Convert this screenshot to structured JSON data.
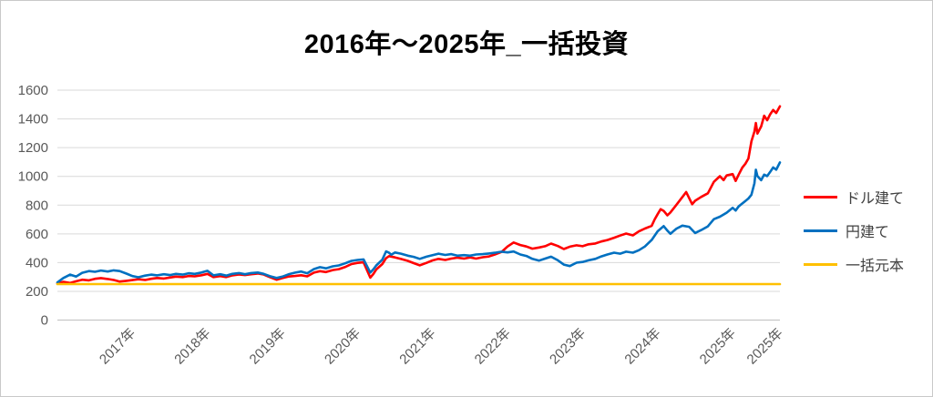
{
  "title": "2016年～2025年_一括投資",
  "chart_data": {
    "type": "line",
    "title": "2016年～2025年_一括投資",
    "xlabel": "",
    "ylabel": "",
    "grid": true,
    "legend_position": "right",
    "y_axis": {
      "min": 0,
      "max": 1600,
      "step": 200,
      "tick_labels": [
        "0",
        "200",
        "400",
        "600",
        "800",
        "1000",
        "1200",
        "1400",
        "1600"
      ]
    },
    "x_axis": {
      "min": 2016.0,
      "max": 2025.63,
      "ticks": [
        {
          "t": 2017.0,
          "label": "2017年"
        },
        {
          "t": 2018.0,
          "label": "2018年"
        },
        {
          "t": 2019.0,
          "label": "2019年"
        },
        {
          "t": 2020.0,
          "label": "2020年"
        },
        {
          "t": 2021.0,
          "label": "2021年"
        },
        {
          "t": 2022.0,
          "label": "2022年"
        },
        {
          "t": 2023.0,
          "label": "2023年"
        },
        {
          "t": 2024.0,
          "label": "2024年"
        },
        {
          "t": 2025.0,
          "label": "2025年"
        },
        {
          "t": 2025.63,
          "label": "2025年"
        }
      ]
    },
    "colors": {
      "gridline": "#d9d9d9",
      "axis_line": "#bfbfbf",
      "tick_text": "#595959",
      "legend_text": "#404040"
    },
    "series": [
      {
        "name": "ドル建て",
        "color": "#FF0000",
        "x": [
          2016.0,
          2016.08,
          2016.17,
          2016.25,
          2016.33,
          2016.42,
          2016.5,
          2016.58,
          2016.67,
          2016.75,
          2016.83,
          2016.92,
          2017.0,
          2017.08,
          2017.17,
          2017.25,
          2017.33,
          2017.42,
          2017.5,
          2017.58,
          2017.67,
          2017.75,
          2017.83,
          2017.92,
          2018.0,
          2018.08,
          2018.17,
          2018.25,
          2018.33,
          2018.42,
          2018.5,
          2018.58,
          2018.67,
          2018.75,
          2018.83,
          2018.92,
          2019.0,
          2019.08,
          2019.17,
          2019.25,
          2019.33,
          2019.42,
          2019.5,
          2019.58,
          2019.67,
          2019.75,
          2019.83,
          2019.92,
          2020.0,
          2020.08,
          2020.17,
          2020.21,
          2020.25,
          2020.33,
          2020.38,
          2020.42,
          2020.5,
          2020.58,
          2020.67,
          2020.75,
          2020.83,
          2020.92,
          2021.0,
          2021.08,
          2021.17,
          2021.25,
          2021.33,
          2021.42,
          2021.5,
          2021.58,
          2021.67,
          2021.75,
          2021.83,
          2021.92,
          2022.0,
          2022.08,
          2022.17,
          2022.25,
          2022.33,
          2022.42,
          2022.5,
          2022.58,
          2022.67,
          2022.75,
          2022.83,
          2022.92,
          2023.0,
          2023.08,
          2023.17,
          2023.25,
          2023.33,
          2023.42,
          2023.5,
          2023.58,
          2023.67,
          2023.75,
          2023.83,
          2023.92,
          2023.96,
          2024.0,
          2024.04,
          2024.08,
          2024.13,
          2024.17,
          2024.25,
          2024.33,
          2024.38,
          2024.46,
          2024.5,
          2024.58,
          2024.67,
          2024.75,
          2024.83,
          2024.88,
          2024.92,
          2025.0,
          2025.04,
          2025.08,
          2025.13,
          2025.17,
          2025.21,
          2025.25,
          2025.29,
          2025.31,
          2025.33,
          2025.38,
          2025.42,
          2025.46,
          2025.5,
          2025.54,
          2025.58,
          2025.63
        ],
        "values": [
          255,
          266,
          258,
          270,
          281,
          276,
          287,
          292,
          286,
          279,
          268,
          273,
          278,
          284,
          279,
          287,
          293,
          289,
          296,
          302,
          299,
          307,
          304,
          312,
          321,
          299,
          306,
          299,
          311,
          317,
          313,
          319,
          324,
          317,
          299,
          281,
          292,
          303,
          307,
          312,
          304,
          330,
          340,
          334,
          348,
          354,
          368,
          390,
          398,
          402,
          295,
          320,
          352,
          390,
          430,
          445,
          436,
          425,
          412,
          396,
          381,
          398,
          415,
          426,
          418,
          428,
          434,
          428,
          436,
          428,
          437,
          442,
          456,
          474,
          512,
          540,
          522,
          512,
          497,
          505,
          514,
          532,
          515,
          494,
          511,
          520,
          514,
          527,
          533,
          547,
          557,
          573,
          588,
          602,
          589,
          617,
          637,
          655,
          700,
          737,
          772,
          760,
          729,
          749,
          802,
          856,
          891,
          806,
          830,
          857,
          882,
          962,
          1001,
          974,
          1006,
          1016,
          968,
          1012,
          1062,
          1088,
          1124,
          1243,
          1312,
          1371,
          1298,
          1347,
          1422,
          1391,
          1432,
          1462,
          1441,
          1488
        ]
      },
      {
        "name": "円建て",
        "color": "#0070C0",
        "x": [
          2016.0,
          2016.08,
          2016.17,
          2016.25,
          2016.33,
          2016.42,
          2016.5,
          2016.58,
          2016.67,
          2016.75,
          2016.83,
          2016.92,
          2017.0,
          2017.08,
          2017.17,
          2017.25,
          2017.33,
          2017.42,
          2017.5,
          2017.58,
          2017.67,
          2017.75,
          2017.83,
          2017.92,
          2018.0,
          2018.08,
          2018.17,
          2018.25,
          2018.33,
          2018.42,
          2018.5,
          2018.58,
          2018.67,
          2018.75,
          2018.83,
          2018.92,
          2019.0,
          2019.08,
          2019.17,
          2019.25,
          2019.33,
          2019.42,
          2019.5,
          2019.58,
          2019.67,
          2019.75,
          2019.83,
          2019.92,
          2020.0,
          2020.08,
          2020.17,
          2020.21,
          2020.25,
          2020.33,
          2020.38,
          2020.42,
          2020.45,
          2020.5,
          2020.58,
          2020.67,
          2020.75,
          2020.83,
          2020.92,
          2021.0,
          2021.08,
          2021.17,
          2021.25,
          2021.33,
          2021.42,
          2021.5,
          2021.58,
          2021.67,
          2021.75,
          2021.83,
          2021.92,
          2022.0,
          2022.08,
          2022.17,
          2022.25,
          2022.33,
          2022.42,
          2022.5,
          2022.58,
          2022.67,
          2022.75,
          2022.83,
          2022.92,
          2023.0,
          2023.08,
          2023.17,
          2023.25,
          2023.33,
          2023.42,
          2023.5,
          2023.58,
          2023.67,
          2023.75,
          2023.83,
          2023.92,
          2024.0,
          2024.08,
          2024.13,
          2024.17,
          2024.25,
          2024.33,
          2024.42,
          2024.5,
          2024.58,
          2024.67,
          2024.75,
          2024.83,
          2024.92,
          2025.0,
          2025.04,
          2025.08,
          2025.13,
          2025.17,
          2025.21,
          2025.25,
          2025.29,
          2025.31,
          2025.33,
          2025.38,
          2025.42,
          2025.46,
          2025.5,
          2025.54,
          2025.58,
          2025.63
        ],
        "values": [
          262,
          293,
          316,
          303,
          329,
          341,
          336,
          345,
          338,
          346,
          341,
          323,
          306,
          298,
          309,
          316,
          311,
          319,
          313,
          321,
          316,
          326,
          321,
          331,
          343,
          311,
          319,
          309,
          321,
          327,
          319,
          327,
          331,
          321,
          306,
          293,
          302,
          318,
          330,
          338,
          326,
          355,
          368,
          360,
          374,
          380,
          394,
          412,
          418,
          422,
          330,
          352,
          380,
          420,
          478,
          468,
          455,
          470,
          462,
          448,
          440,
          426,
          441,
          452,
          462,
          453,
          459,
          448,
          452,
          448,
          456,
          459,
          463,
          468,
          476,
          471,
          477,
          456,
          446,
          426,
          414,
          428,
          441,
          416,
          386,
          376,
          399,
          404,
          416,
          426,
          443,
          456,
          469,
          462,
          476,
          469,
          486,
          512,
          557,
          618,
          654,
          622,
          601,
          636,
          657,
          649,
          606,
          626,
          652,
          702,
          719,
          747,
          781,
          762,
          791,
          812,
          829,
          846,
          872,
          952,
          1046,
          1002,
          973,
          1012,
          1002,
          1031,
          1062,
          1046,
          1097
        ]
      },
      {
        "name": "一括元本",
        "color": "#FFC000",
        "x": [
          2016.0,
          2025.63
        ],
        "values": [
          250,
          250
        ]
      }
    ]
  }
}
